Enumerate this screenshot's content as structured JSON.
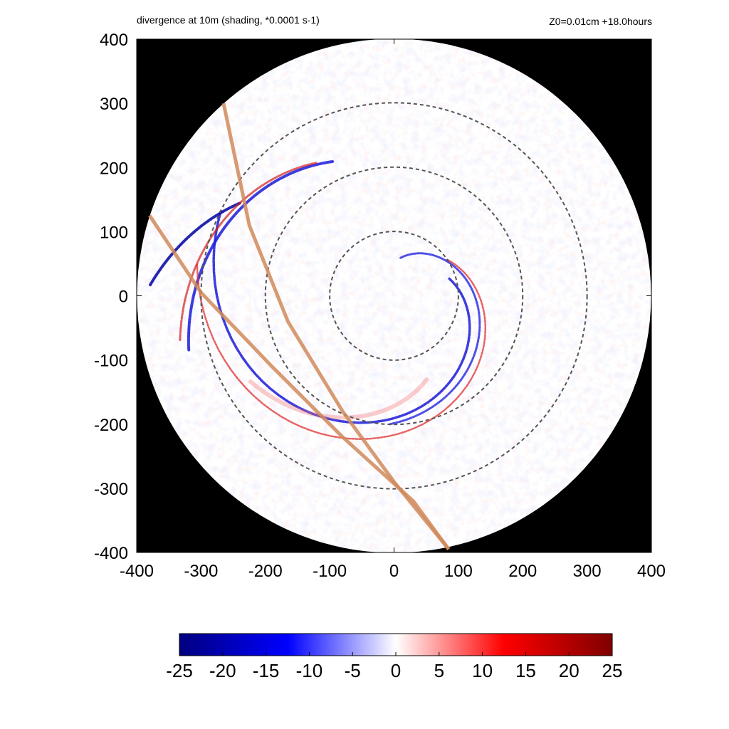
{
  "title_left": "divergence at 10m (shading, *0.0001 s-1)",
  "title_right": "Z0=0.01cm  +18.0hours",
  "chart_data": {
    "type": "heatmap",
    "variable": "divergence at 10m",
    "units_scale": "*0.0001 s-1",
    "xlim": [
      -400,
      400
    ],
    "ylim": [
      -400,
      400
    ],
    "x_ticks": [
      "-400",
      "-300",
      "-200",
      "-100",
      "0",
      "100",
      "200",
      "300",
      "400"
    ],
    "y_ticks": [
      "400",
      "300",
      "200",
      "100",
      "0",
      "-100",
      "-200",
      "-300",
      "-400"
    ],
    "domain_radius": 400,
    "range_rings": [
      100,
      200,
      300
    ],
    "colorbar": {
      "min": -25,
      "max": 25,
      "tick_labels": [
        "-25",
        "-20",
        "-15",
        "-10",
        "-5",
        "0",
        "5",
        "10",
        "15",
        "20",
        "25"
      ],
      "colormap": [
        "#00007f",
        "#0000ff",
        "#ffffff",
        "#ff0000",
        "#7f0000"
      ]
    },
    "tracks": [
      {
        "points": [
          [
            -265,
            300
          ],
          [
            -225,
            110
          ],
          [
            -165,
            -40
          ],
          [
            -80,
            -180
          ],
          [
            0,
            -290
          ],
          [
            85,
            -395
          ]
        ]
      },
      {
        "points": [
          [
            -380,
            125
          ],
          [
            -300,
            5
          ],
          [
            -190,
            -110
          ],
          [
            -80,
            -220
          ],
          [
            30,
            -320
          ],
          [
            85,
            -395
          ]
        ]
      }
    ],
    "colors": {
      "outside": "#000000",
      "ring": "#555555",
      "track": "#d08a5a"
    }
  }
}
